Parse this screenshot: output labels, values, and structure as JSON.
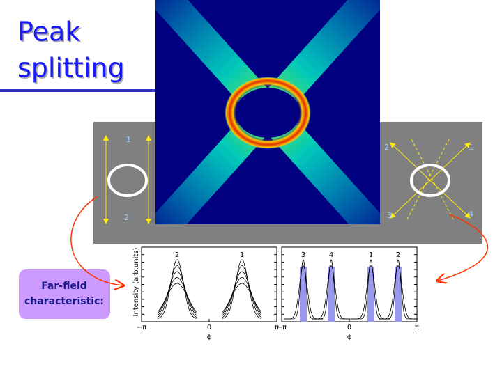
{
  "title": {
    "line1": "Peak",
    "line2": "splitting"
  },
  "left_panel": {
    "labels": [
      "1",
      "2"
    ]
  },
  "right_panel": {
    "labels": [
      "2",
      "1",
      "3",
      "4"
    ]
  },
  "callout": {
    "line1": "Far-field",
    "line2": "characteristic:"
  },
  "plots": [
    {
      "y_label": "Intensity (arb.units)",
      "peak_labels": [
        "2",
        "1"
      ],
      "x_ticks": [
        "−π",
        "0",
        "π"
      ],
      "x_label": "ϕ"
    },
    {
      "peak_labels": [
        "3",
        "4",
        "1",
        "2"
      ],
      "x_ticks": [
        "−π",
        "0",
        "π"
      ],
      "x_label": "ϕ"
    }
  ]
}
